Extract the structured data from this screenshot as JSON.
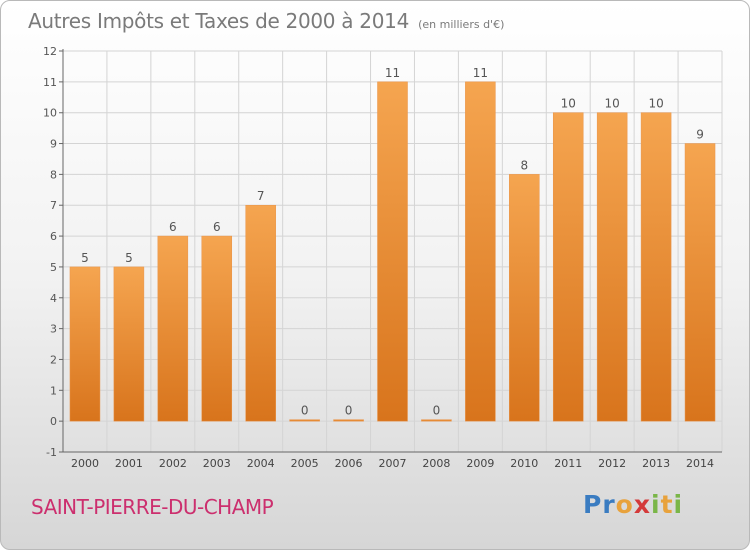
{
  "header": {
    "title": "Autres Impôts et Taxes de 2000 à 2014",
    "subtitle": "(en milliers d'€)"
  },
  "footer": {
    "commune": "SAINT-PIERRE-DU-CHAMP",
    "logo_letters": [
      {
        "ch": "P",
        "color": "#3a7cc1"
      },
      {
        "ch": "r",
        "color": "#3a7cc1"
      },
      {
        "ch": "o",
        "color": "#e8a23c"
      },
      {
        "ch": "x",
        "color": "#d43a3a"
      },
      {
        "ch": "i",
        "color": "#7ab648"
      },
      {
        "ch": "t",
        "color": "#e8a23c"
      },
      {
        "ch": "i",
        "color": "#7ab648"
      }
    ]
  },
  "colors": {
    "bar_light": "#f5a550",
    "bar_dark": "#d8741c",
    "grid": "#d4d4d4",
    "title": "#7a7a7a",
    "commune": "#cc2f6e"
  },
  "chart_data": {
    "type": "bar",
    "title": "Autres Impôts et Taxes de 2000 à 2014",
    "subtitle": "(en milliers d'€)",
    "xlabel": "",
    "ylabel": "",
    "categories": [
      "2000",
      "2001",
      "2002",
      "2003",
      "2004",
      "2005",
      "2006",
      "2007",
      "2008",
      "2009",
      "2010",
      "2011",
      "2012",
      "2013",
      "2014"
    ],
    "values": [
      5,
      5,
      6,
      6,
      7,
      0,
      0,
      11,
      0,
      11,
      8,
      10,
      10,
      10,
      9
    ],
    "data_labels": [
      "5",
      "5",
      "6",
      "6",
      "7",
      "0",
      "0",
      "11",
      "0",
      "11",
      "8",
      "10",
      "10",
      "10",
      "9"
    ],
    "ylim": [
      -1,
      12
    ],
    "y_ticks": [
      {
        "v": 12,
        "label": "12"
      },
      {
        "v": 11,
        "label": "11"
      },
      {
        "v": 10,
        "label": "10"
      },
      {
        "v": 9,
        "label": "9"
      },
      {
        "v": 8,
        "label": "8"
      },
      {
        "v": 7,
        "label": "7"
      },
      {
        "v": 6,
        "label": "6"
      },
      {
        "v": 5,
        "label": "5"
      },
      {
        "v": 4,
        "label": "4"
      },
      {
        "v": 3,
        "label": "3"
      },
      {
        "v": 2,
        "label": "2"
      },
      {
        "v": 1,
        "label": "1"
      },
      {
        "v": 0,
        "label": "0"
      },
      {
        "v": -1,
        "label": "-1"
      }
    ],
    "grid": true,
    "legend": "none"
  }
}
